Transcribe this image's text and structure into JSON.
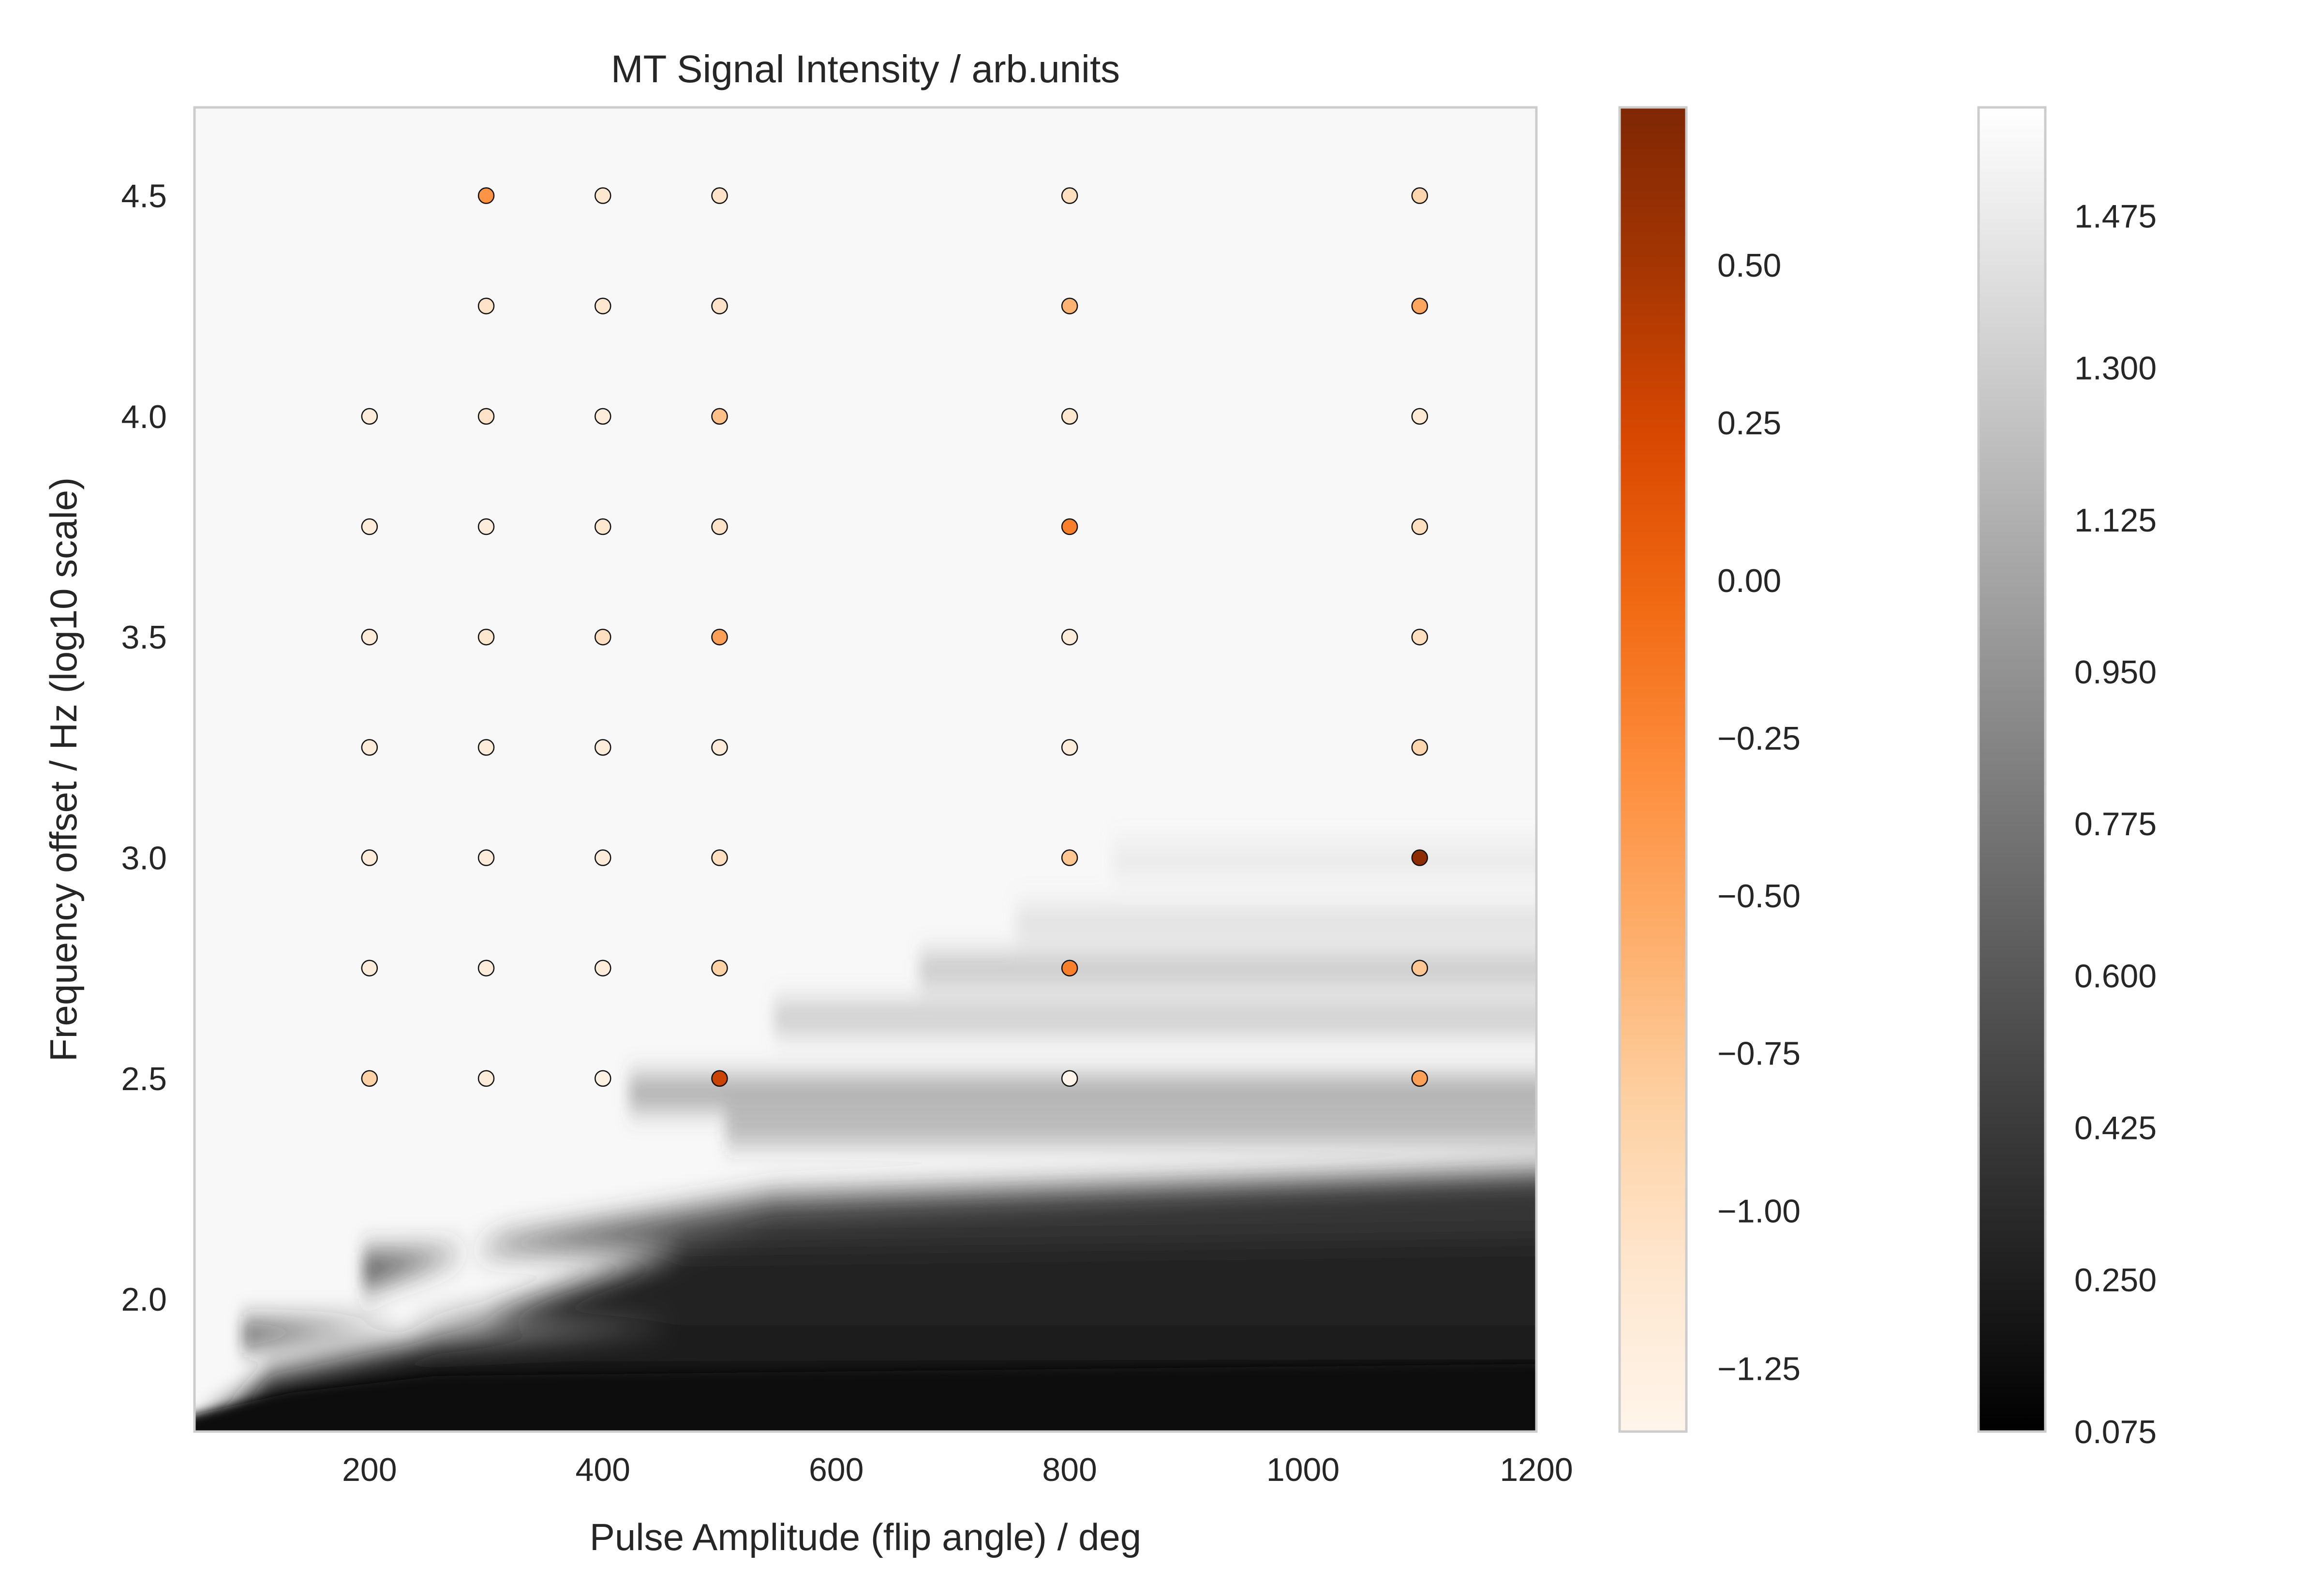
{
  "chart_data": {
    "type": "scatter",
    "title": "MT Signal Intensity / arb.units",
    "xlabel": "Pulse Amplitude (flip angle) / deg",
    "ylabel": "Frequency offset / Hz (log10 scale)",
    "xlim": [
      50,
      1200
    ],
    "ylim": [
      1.7,
      4.7
    ],
    "x_ticks": [
      200,
      400,
      600,
      800,
      1000,
      1200
    ],
    "y_ticks": [
      2.0,
      2.5,
      3.0,
      3.5,
      4.0,
      4.5
    ],
    "grid": false,
    "background": {
      "type": "contour",
      "colormap": "gray",
      "colorbar_ticks": [
        "0.075",
        "0.250",
        "0.425",
        "0.600",
        "0.775",
        "0.950",
        "1.125",
        "1.300",
        "1.475"
      ],
      "range": [
        0.075,
        1.6
      ]
    },
    "scatter_colorbar": {
      "colormap": "Oranges",
      "colorbar_ticks": [
        "−1.25",
        "−1.00",
        "−0.75",
        "−0.50",
        "−0.25",
        "0.00",
        "0.25",
        "0.50"
      ],
      "range": [
        -1.35,
        0.75
      ]
    },
    "points": [
      {
        "x": 200,
        "y": 2.5,
        "v": -0.85
      },
      {
        "x": 200,
        "y": 2.75,
        "v": -1.2
      },
      {
        "x": 200,
        "y": 3.0,
        "v": -1.2
      },
      {
        "x": 200,
        "y": 3.25,
        "v": -1.2
      },
      {
        "x": 200,
        "y": 3.5,
        "v": -1.2
      },
      {
        "x": 200,
        "y": 3.75,
        "v": -1.2
      },
      {
        "x": 200,
        "y": 4.0,
        "v": -1.2
      },
      {
        "x": 300,
        "y": 2.5,
        "v": -1.2
      },
      {
        "x": 300,
        "y": 2.75,
        "v": -1.2
      },
      {
        "x": 300,
        "y": 3.0,
        "v": -1.2
      },
      {
        "x": 300,
        "y": 3.25,
        "v": -1.2
      },
      {
        "x": 300,
        "y": 3.5,
        "v": -1.1
      },
      {
        "x": 300,
        "y": 3.75,
        "v": -1.2
      },
      {
        "x": 300,
        "y": 4.0,
        "v": -1.05
      },
      {
        "x": 300,
        "y": 4.25,
        "v": -1.05
      },
      {
        "x": 300,
        "y": 4.5,
        "v": -0.35
      },
      {
        "x": 400,
        "y": 2.5,
        "v": -1.3
      },
      {
        "x": 400,
        "y": 2.75,
        "v": -1.2
      },
      {
        "x": 400,
        "y": 3.0,
        "v": -1.2
      },
      {
        "x": 400,
        "y": 3.25,
        "v": -1.2
      },
      {
        "x": 400,
        "y": 3.5,
        "v": -1.0
      },
      {
        "x": 400,
        "y": 3.75,
        "v": -1.1
      },
      {
        "x": 400,
        "y": 4.0,
        "v": -1.2
      },
      {
        "x": 400,
        "y": 4.25,
        "v": -1.1
      },
      {
        "x": 400,
        "y": 4.5,
        "v": -1.1
      },
      {
        "x": 500,
        "y": 2.5,
        "v": 0.3
      },
      {
        "x": 500,
        "y": 2.75,
        "v": -0.85
      },
      {
        "x": 500,
        "y": 3.0,
        "v": -1.0
      },
      {
        "x": 500,
        "y": 3.25,
        "v": -1.2
      },
      {
        "x": 500,
        "y": 3.5,
        "v": -0.45
      },
      {
        "x": 500,
        "y": 3.75,
        "v": -1.05
      },
      {
        "x": 500,
        "y": 4.0,
        "v": -0.7
      },
      {
        "x": 500,
        "y": 4.25,
        "v": -1.05
      },
      {
        "x": 500,
        "y": 4.5,
        "v": -1.05
      },
      {
        "x": 800,
        "y": 2.5,
        "v": -1.35
      },
      {
        "x": 800,
        "y": 2.75,
        "v": -0.2
      },
      {
        "x": 800,
        "y": 3.0,
        "v": -0.75
      },
      {
        "x": 800,
        "y": 3.25,
        "v": -1.2
      },
      {
        "x": 800,
        "y": 3.5,
        "v": -1.2
      },
      {
        "x": 800,
        "y": 3.75,
        "v": -0.2
      },
      {
        "x": 800,
        "y": 4.0,
        "v": -1.1
      },
      {
        "x": 800,
        "y": 4.25,
        "v": -0.6
      },
      {
        "x": 800,
        "y": 4.5,
        "v": -1.0
      },
      {
        "x": 1100,
        "y": 2.5,
        "v": -0.45
      },
      {
        "x": 1100,
        "y": 2.75,
        "v": -0.75
      },
      {
        "x": 1100,
        "y": 3.0,
        "v": 0.65
      },
      {
        "x": 1100,
        "y": 3.25,
        "v": -0.9
      },
      {
        "x": 1100,
        "y": 3.5,
        "v": -1.0
      },
      {
        "x": 1100,
        "y": 3.75,
        "v": -1.0
      },
      {
        "x": 1100,
        "y": 4.0,
        "v": -1.15
      },
      {
        "x": 1100,
        "y": 4.25,
        "v": -0.5
      },
      {
        "x": 1100,
        "y": 4.5,
        "v": -0.9
      }
    ]
  }
}
